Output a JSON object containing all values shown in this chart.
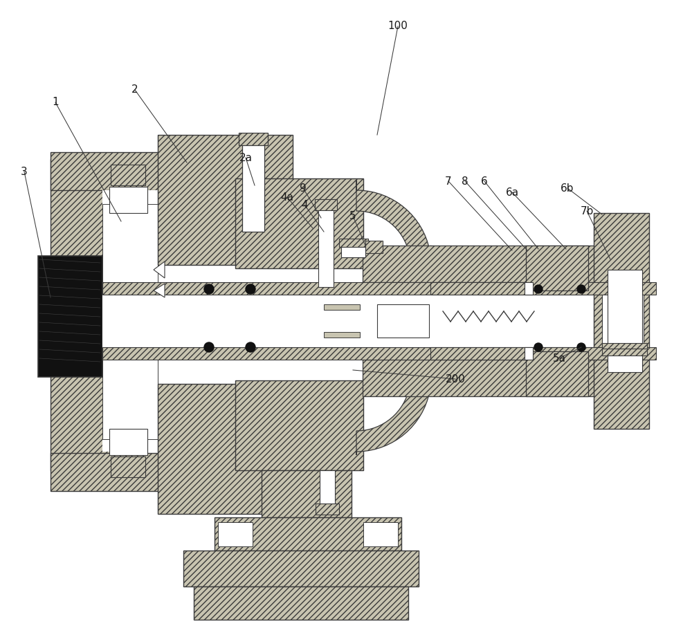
{
  "bg_color": "#ffffff",
  "lc": "#3a3a3a",
  "hc": "#c8c4b0",
  "hc2": "#b8b4a0",
  "dark": "#111111",
  "white": "#ffffff",
  "gray": "#888888",
  "labels": [
    [
      "100",
      575,
      38,
      545,
      195
    ],
    [
      "1",
      80,
      148,
      175,
      320
    ],
    [
      "2",
      195,
      130,
      270,
      235
    ],
    [
      "3",
      35,
      248,
      73,
      430
    ],
    [
      "2a",
      355,
      228,
      368,
      268
    ],
    [
      "9",
      438,
      272,
      464,
      315
    ],
    [
      "4a",
      415,
      285,
      452,
      330
    ],
    [
      "4",
      440,
      296,
      468,
      335
    ],
    [
      "5",
      510,
      312,
      528,
      355
    ],
    [
      "7",
      648,
      262,
      740,
      362
    ],
    [
      "8",
      672,
      262,
      762,
      362
    ],
    [
      "6",
      700,
      262,
      778,
      360
    ],
    [
      "6a",
      740,
      278,
      818,
      360
    ],
    [
      "6b",
      820,
      272,
      870,
      310
    ],
    [
      "7b",
      848,
      305,
      882,
      375
    ],
    [
      "5a",
      808,
      518,
      840,
      502
    ],
    [
      "200",
      658,
      548,
      510,
      535
    ]
  ]
}
